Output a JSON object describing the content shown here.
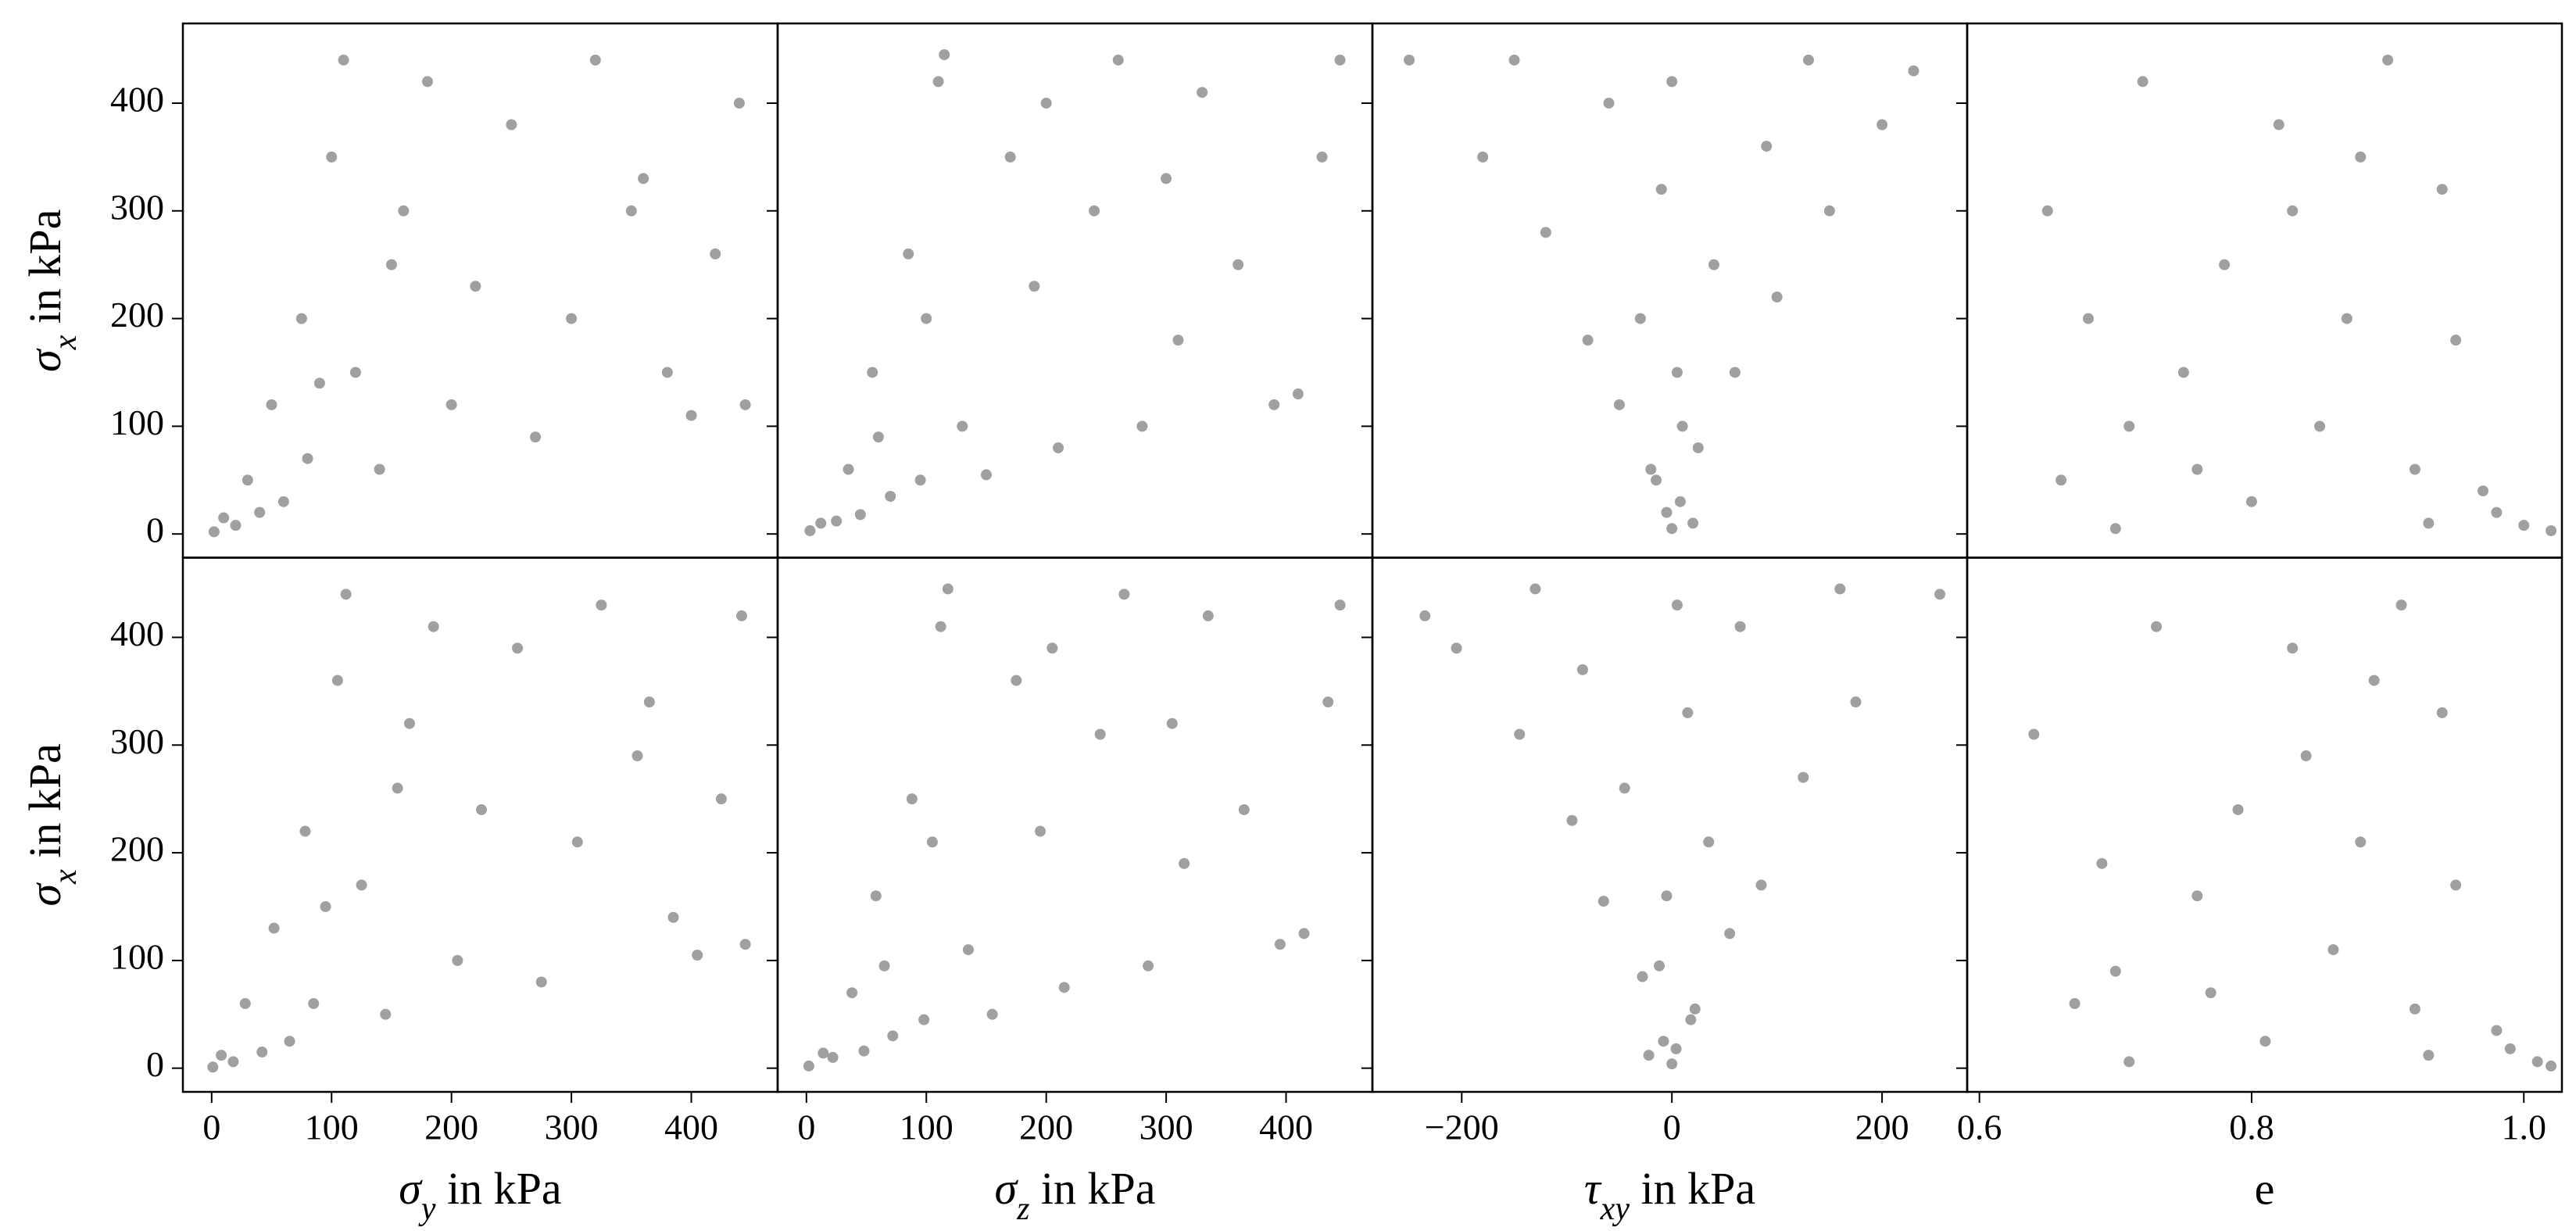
{
  "chart_data": [
    {
      "type": "scatter",
      "color": "#808080",
      "xlim": [
        -24,
        472
      ],
      "ylim": [
        -22,
        474
      ],
      "yticks": [
        0,
        100,
        200,
        300,
        400
      ],
      "ylabel": [
        "σ",
        "x",
        " in kPa"
      ],
      "x": [
        2,
        10,
        20,
        30,
        40,
        50,
        60,
        75,
        80,
        100,
        110,
        120,
        140,
        160,
        180,
        200,
        220,
        250,
        270,
        300,
        320,
        350,
        380,
        400,
        420,
        440,
        445,
        360,
        150,
        90
      ],
      "y": [
        2,
        15,
        8,
        50,
        20,
        120,
        30,
        200,
        70,
        350,
        440,
        150,
        60,
        300,
        420,
        120,
        230,
        380,
        90,
        200,
        440,
        300,
        150,
        110,
        260,
        400,
        120,
        330,
        250,
        140
      ]
    },
    {
      "type": "scatter",
      "color": "#808080",
      "xlim": [
        -24,
        472
      ],
      "ylim": [
        -22,
        474
      ],
      "x": [
        3,
        12,
        25,
        35,
        45,
        55,
        70,
        85,
        95,
        110,
        115,
        130,
        150,
        170,
        190,
        210,
        240,
        260,
        280,
        310,
        330,
        360,
        390,
        410,
        430,
        445,
        200,
        100,
        60,
        300
      ],
      "y": [
        3,
        10,
        12,
        60,
        18,
        150,
        35,
        260,
        50,
        420,
        445,
        100,
        55,
        350,
        230,
        80,
        300,
        440,
        100,
        180,
        410,
        250,
        120,
        130,
        350,
        440,
        400,
        200,
        90,
        330
      ]
    },
    {
      "type": "scatter",
      "color": "#808080",
      "xlim": [
        -285,
        281
      ],
      "ylim": [
        -22,
        474
      ],
      "x": [
        0,
        -5,
        8,
        -20,
        25,
        -50,
        10,
        60,
        -80,
        -30,
        100,
        40,
        -120,
        150,
        -10,
        -180,
        90,
        200,
        -60,
        230,
        -250,
        0,
        -150,
        130,
        5,
        -15,
        20
      ],
      "y": [
        5,
        20,
        30,
        60,
        80,
        120,
        100,
        150,
        180,
        200,
        220,
        250,
        280,
        300,
        320,
        350,
        360,
        380,
        400,
        430,
        440,
        420,
        440,
        440,
        150,
        50,
        10
      ]
    },
    {
      "type": "scatter",
      "color": "#808080",
      "xlim": [
        0.591,
        1.028
      ],
      "ylim": [
        -22,
        474
      ],
      "x": [
        0.65,
        0.66,
        0.7,
        0.72,
        0.75,
        0.78,
        0.8,
        0.82,
        0.85,
        0.87,
        0.9,
        0.92,
        0.94,
        0.95,
        0.97,
        1.0,
        1.02,
        0.68,
        0.88,
        0.76,
        0.93,
        0.83,
        0.71,
        0.98
      ],
      "y": [
        300,
        50,
        5,
        420,
        150,
        250,
        30,
        380,
        100,
        200,
        440,
        60,
        320,
        180,
        40,
        8,
        3,
        200,
        350,
        60,
        10,
        300,
        100,
        20
      ]
    },
    {
      "type": "scatter",
      "color": "#808080",
      "xlim": [
        -24,
        472
      ],
      "ylim": [
        -22,
        474
      ],
      "yticks": [
        0,
        100,
        200,
        300,
        400
      ],
      "ylabel": [
        "σ",
        "x",
        " in kPa"
      ],
      "xticks": [
        0,
        100,
        200,
        300,
        400
      ],
      "xlabel": [
        "σ",
        "y",
        " in kPa"
      ],
      "x": [
        1,
        8,
        18,
        28,
        42,
        52,
        65,
        78,
        85,
        105,
        112,
        125,
        145,
        165,
        185,
        205,
        225,
        255,
        275,
        305,
        325,
        355,
        385,
        405,
        425,
        442,
        445,
        365,
        155,
        95
      ],
      "y": [
        1,
        12,
        6,
        60,
        15,
        130,
        25,
        220,
        60,
        360,
        440,
        170,
        50,
        320,
        410,
        100,
        240,
        390,
        80,
        210,
        430,
        290,
        140,
        105,
        250,
        420,
        115,
        340,
        260,
        150
      ]
    },
    {
      "type": "scatter",
      "color": "#808080",
      "xlim": [
        -24,
        472
      ],
      "ylim": [
        -22,
        474
      ],
      "xticks": [
        0,
        100,
        200,
        300,
        400
      ],
      "xlabel": [
        "σ",
        "z",
        " in kPa"
      ],
      "x": [
        2,
        14,
        22,
        38,
        48,
        58,
        72,
        88,
        98,
        112,
        118,
        135,
        155,
        175,
        195,
        215,
        245,
        265,
        285,
        315,
        335,
        365,
        395,
        415,
        435,
        445,
        205,
        105,
        65,
        305
      ],
      "y": [
        2,
        14,
        10,
        70,
        16,
        160,
        30,
        250,
        45,
        410,
        445,
        110,
        50,
        360,
        220,
        75,
        310,
        440,
        95,
        190,
        420,
        240,
        115,
        125,
        340,
        430,
        390,
        210,
        95,
        320
      ]
    },
    {
      "type": "scatter",
      "color": "#808080",
      "xlim": [
        -285,
        281
      ],
      "ylim": [
        -22,
        474
      ],
      "xticks": [
        {
          "value": -200,
          "label": "−200"
        },
        0,
        200
      ],
      "xlabel": [
        "τ",
        "xy",
        " in kPa"
      ],
      "x": [
        0,
        4,
        -8,
        22,
        -28,
        55,
        -12,
        -65,
        85,
        35,
        -95,
        -45,
        125,
        -145,
        15,
        175,
        -85,
        -205,
        65,
        -235,
        255,
        5,
        160,
        -130,
        -5,
        18,
        -22
      ],
      "y": [
        4,
        18,
        25,
        55,
        85,
        125,
        95,
        155,
        170,
        210,
        230,
        260,
        270,
        310,
        330,
        340,
        370,
        390,
        410,
        420,
        440,
        430,
        445,
        445,
        160,
        45,
        12
      ]
    },
    {
      "type": "scatter",
      "color": "#808080",
      "xlim": [
        0.591,
        1.028
      ],
      "ylim": [
        -22,
        474
      ],
      "xticks": [
        0.6,
        0.8,
        {
          "value": 1,
          "label": "1.0"
        }
      ],
      "xlabel": "e",
      "x": [
        0.64,
        0.67,
        0.71,
        0.73,
        0.76,
        0.79,
        0.81,
        0.83,
        0.86,
        0.88,
        0.91,
        0.92,
        0.94,
        0.95,
        0.98,
        1.01,
        1.02,
        0.69,
        0.89,
        0.77,
        0.93,
        0.84,
        0.7,
        0.99
      ],
      "y": [
        310,
        60,
        6,
        410,
        160,
        240,
        25,
        390,
        110,
        210,
        430,
        55,
        330,
        170,
        35,
        6,
        2,
        190,
        360,
        70,
        12,
        290,
        90,
        18
      ]
    }
  ]
}
